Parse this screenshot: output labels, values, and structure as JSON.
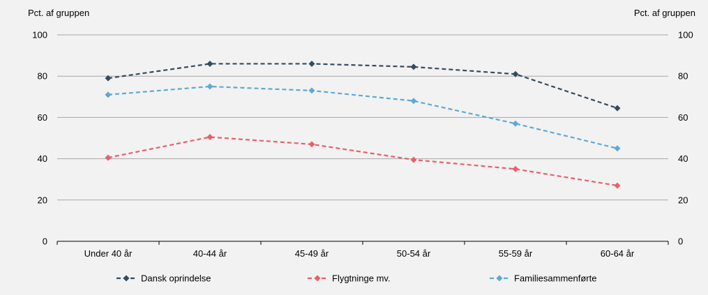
{
  "chart_data": {
    "type": "line",
    "ylabel_left": "Pct. af gruppen",
    "ylabel_right": "Pct. af gruppen",
    "ylim": [
      0,
      100
    ],
    "yticks": [
      0,
      20,
      40,
      60,
      80,
      100
    ],
    "categories": [
      "Under 40 år",
      "40-44 år",
      "45-49 år",
      "50-54 år",
      "55-59 år",
      "60-64 år"
    ],
    "grid": true,
    "legend_position": "bottom",
    "series": [
      {
        "name": "Dansk oprindelse",
        "color": "#344b5e",
        "values": [
          79,
          86,
          86,
          84.5,
          81,
          64.5
        ]
      },
      {
        "name": "Flygtninge mv.",
        "color": "#e8606a",
        "values": [
          40.5,
          50.5,
          47,
          39.5,
          35,
          27
        ]
      },
      {
        "name": "Familiesammenførte",
        "color": "#5ea9d2",
        "values": [
          71,
          75,
          73,
          68,
          57,
          45
        ]
      }
    ]
  }
}
